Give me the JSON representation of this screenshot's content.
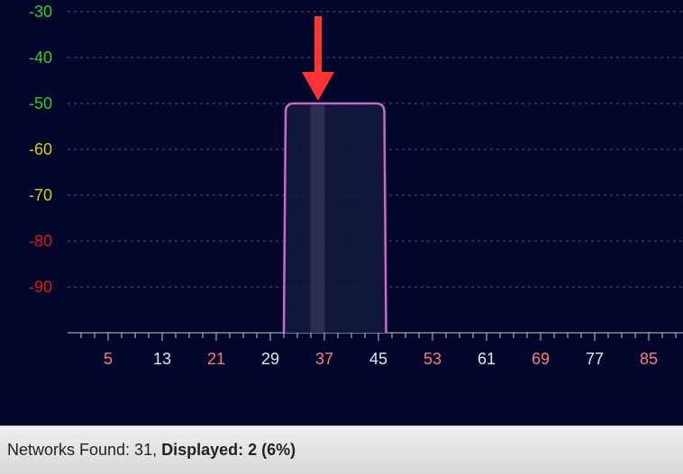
{
  "chart_data": {
    "type": "area",
    "y_ticks": [
      {
        "label": "-30",
        "value": -30,
        "color": "#2fd12f"
      },
      {
        "label": "-40",
        "value": -40,
        "color": "#2fd12f"
      },
      {
        "label": "-50",
        "value": -50,
        "color": "#2fd12f"
      },
      {
        "label": "-60",
        "value": -60,
        "color": "#d8d000"
      },
      {
        "label": "-70",
        "value": -70,
        "color": "#d8d000"
      },
      {
        "label": "-80",
        "value": -80,
        "color": "#e01818"
      },
      {
        "label": "-90",
        "value": -90,
        "color": "#e01818"
      }
    ],
    "ylim": [
      -100,
      -27
    ],
    "x_ticks": [
      {
        "label": "5",
        "value": 5,
        "color": "#ff7b7b"
      },
      {
        "label": "13",
        "value": 13,
        "color": "#e6e6e6"
      },
      {
        "label": "21",
        "value": 21,
        "color": "#ff7b7b"
      },
      {
        "label": "29",
        "value": 29,
        "color": "#e6e6e6"
      },
      {
        "label": "37",
        "value": 37,
        "color": "#ff7b7b"
      },
      {
        "label": "45",
        "value": 45,
        "color": "#e6e6e6"
      },
      {
        "label": "53",
        "value": 53,
        "color": "#ff7b7b"
      },
      {
        "label": "61",
        "value": 61,
        "color": "#e6e6e6"
      },
      {
        "label": "69",
        "value": 69,
        "color": "#ff7b7b"
      },
      {
        "label": "77",
        "value": 77,
        "color": "#e6e6e6"
      },
      {
        "label": "85",
        "value": 85,
        "color": "#ff7b7b"
      }
    ],
    "minor_tick_step": 2,
    "grid": true,
    "series": [
      {
        "color": "#c86bc8",
        "x_start": 31,
        "x_end": 46,
        "top_dbm": -50,
        "center_channel": 36,
        "center_width": 2
      }
    ],
    "annotation": {
      "type": "arrow",
      "color": "#ff3333",
      "target_channel": 36,
      "target_dbm": -50
    }
  },
  "status": {
    "networks_label": "Networks Found: 31, ",
    "displayed_label": "Displayed: 2 (6%)"
  }
}
